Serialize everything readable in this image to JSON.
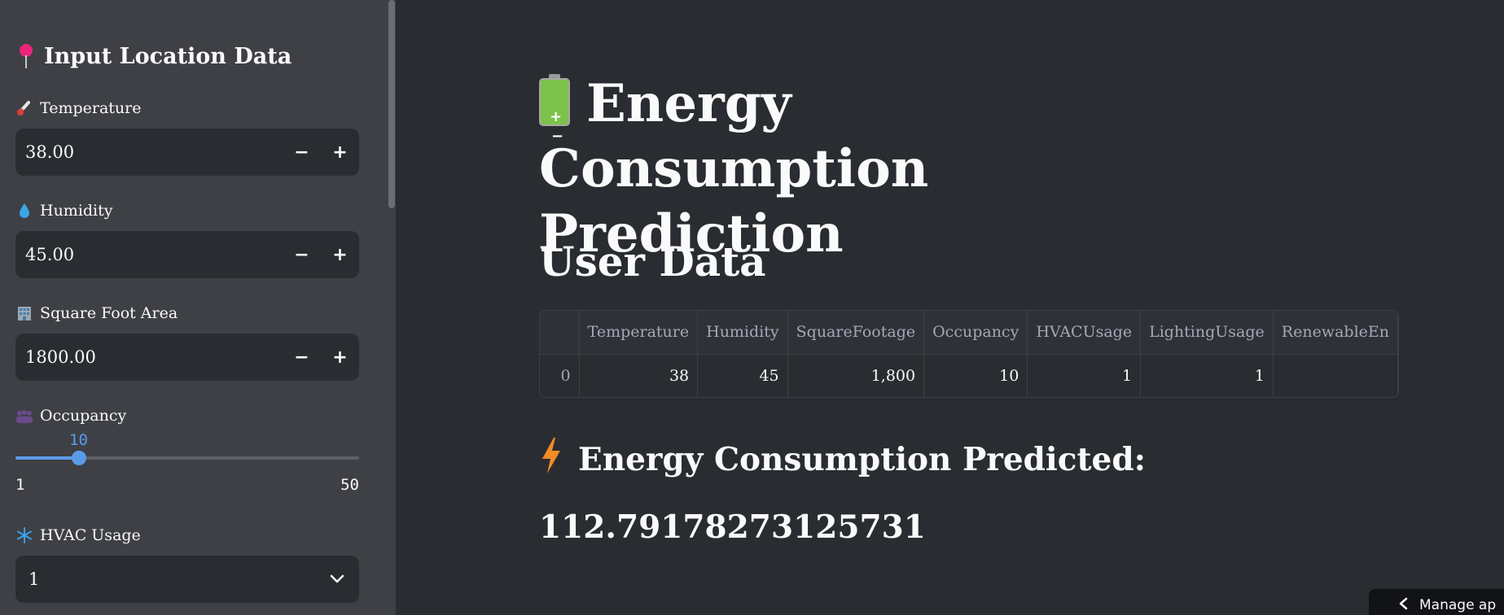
{
  "sidebar": {
    "title": "Input Location Data",
    "temperature": {
      "label": "Temperature",
      "value": "38.00"
    },
    "humidity": {
      "label": "Humidity",
      "value": "45.00"
    },
    "square_foot": {
      "label": "Square Foot Area",
      "value": "1800.00"
    },
    "occupancy": {
      "label": "Occupancy",
      "value": "10",
      "min": "1",
      "max": "50",
      "level_fraction": 0.1837
    },
    "hvac": {
      "label": "HVAC Usage",
      "value": "1"
    },
    "controls": {
      "minus": "−",
      "plus": "+"
    }
  },
  "main": {
    "title": "Energy Consumption Prediction",
    "user_data_heading": "User Data",
    "table": {
      "columns": [
        "",
        "Temperature",
        "Humidity",
        "SquareFootage",
        "Occupancy",
        "HVACUsage",
        "LightingUsage",
        "RenewableEn"
      ],
      "rows": [
        [
          "0",
          "38",
          "45",
          "1,800",
          "10",
          "1",
          "1",
          ""
        ]
      ]
    },
    "prediction_heading": "Energy Consumption Predicted:",
    "prediction_value": "112.79178273125731"
  },
  "footer": {
    "manage_label": "Manage ap"
  },
  "colors": {
    "accent": "#5a9be8",
    "background": "#292d31",
    "sidebar": "#3e4046"
  },
  "icons": {
    "title": "round-pushpin-icon",
    "temperature": "thermometer-icon",
    "humidity": "droplet-icon",
    "square_foot": "office-building-icon",
    "occupancy": "crowd-icon",
    "hvac": "snowflake-icon",
    "main_title": "battery-icon",
    "prediction": "lightning-icon"
  }
}
